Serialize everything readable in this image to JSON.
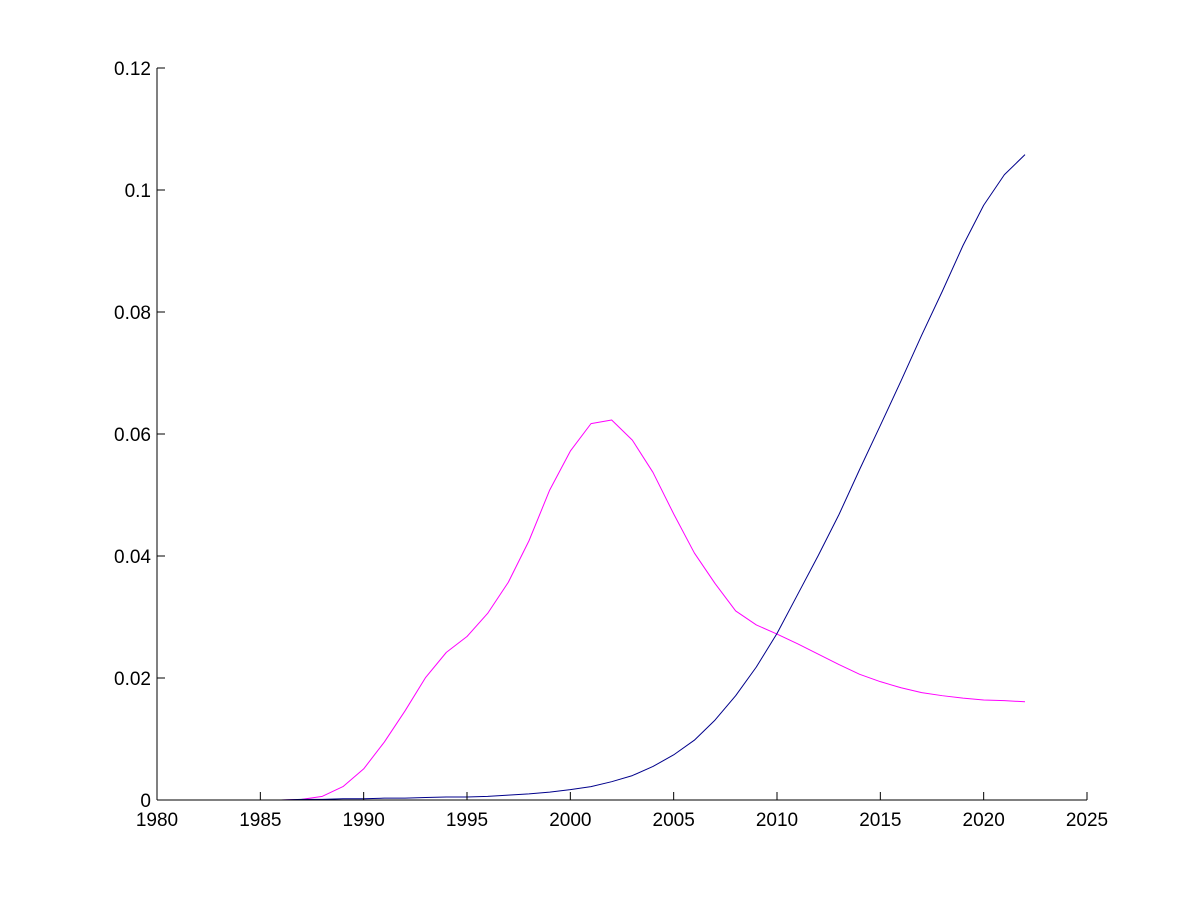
{
  "chart_data": {
    "type": "line",
    "title": "",
    "xlabel": "",
    "ylabel": "",
    "xlim": [
      1980,
      2025
    ],
    "ylim": [
      0,
      0.12
    ],
    "x_ticks": [
      1980,
      1985,
      1990,
      1995,
      2000,
      2005,
      2010,
      2015,
      2020,
      2025
    ],
    "x_tick_labels": [
      "1980",
      "1985",
      "1990",
      "1995",
      "2000",
      "2005",
      "2010",
      "2015",
      "2020",
      "2025"
    ],
    "y_ticks": [
      0,
      0.02,
      0.04,
      0.06,
      0.08,
      0.1,
      0.12
    ],
    "y_tick_labels": [
      "0",
      "0.02",
      "0.04",
      "0.06",
      "0.08",
      "0.1",
      "0.12"
    ],
    "grid": false,
    "legend": "none",
    "series": [
      {
        "color": "#ff00ff",
        "x": [
          1980,
          1981,
          1982,
          1983,
          1984,
          1985,
          1986,
          1987,
          1988,
          1989,
          1990,
          1991,
          1992,
          1993,
          1994,
          1995,
          1996,
          1997,
          1998,
          1999,
          2000,
          2001,
          2002,
          2003,
          2004,
          2005,
          2006,
          2007,
          2008,
          2009,
          2010,
          2011,
          2012,
          2013,
          2014,
          2015,
          2016,
          2017,
          2018,
          2019,
          2020,
          2021,
          2022
        ],
        "y": [
          0,
          0,
          0,
          0,
          0,
          0,
          0,
          0.0001,
          0.0006,
          0.0022,
          0.0051,
          0.0095,
          0.0146,
          0.0201,
          0.0242,
          0.0268,
          0.0306,
          0.0357,
          0.0425,
          0.0508,
          0.0572,
          0.0617,
          0.0623,
          0.059,
          0.0537,
          0.0469,
          0.0405,
          0.0355,
          0.031,
          0.0287,
          0.0272,
          0.0256,
          0.0239,
          0.0222,
          0.0206,
          0.0194,
          0.0184,
          0.0176,
          0.0171,
          0.0167,
          0.0164,
          0.0163,
          0.0161
        ]
      },
      {
        "color": "#00008b",
        "x": [
          1980,
          1981,
          1982,
          1983,
          1984,
          1985,
          1986,
          1987,
          1988,
          1989,
          1990,
          1991,
          1992,
          1993,
          1994,
          1995,
          1996,
          1997,
          1998,
          1999,
          2000,
          2001,
          2002,
          2003,
          2004,
          2005,
          2006,
          2007,
          2008,
          2009,
          2010,
          2011,
          2012,
          2013,
          2014,
          2015,
          2016,
          2017,
          2018,
          2019,
          2020,
          2021,
          2022
        ],
        "y": [
          0,
          0,
          0,
          0,
          0,
          0,
          0,
          0.0001,
          0.0001,
          0.0002,
          0.0002,
          0.0003,
          0.0003,
          0.0004,
          0.0005,
          0.0005,
          0.0006,
          0.0008,
          0.001,
          0.0013,
          0.0017,
          0.0022,
          0.003,
          0.004,
          0.0055,
          0.0074,
          0.0098,
          0.0131,
          0.0171,
          0.0218,
          0.0273,
          0.0337,
          0.0401,
          0.0468,
          0.0542,
          0.0614,
          0.0687,
          0.0762,
          0.0834,
          0.0909,
          0.0975,
          0.1025,
          0.1058
        ]
      }
    ]
  }
}
